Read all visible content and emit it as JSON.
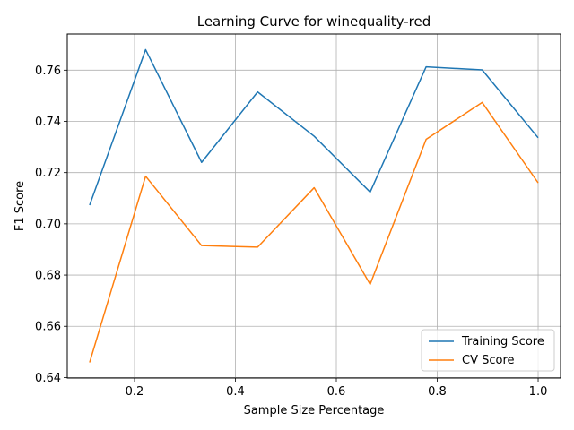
{
  "chart_data": {
    "type": "line",
    "title": "Learning Curve for winequality-red",
    "xlabel": "Sample Size Percentage",
    "ylabel": "F1 Score",
    "x": [
      0.111,
      0.222,
      0.333,
      0.444,
      0.556,
      0.667,
      0.778,
      0.889,
      1.0
    ],
    "series": [
      {
        "name": "Training Score",
        "color": "#1f77b4",
        "values": [
          0.7073,
          0.768,
          0.724,
          0.7515,
          0.7342,
          0.7124,
          0.7613,
          0.7601,
          0.7336
        ]
      },
      {
        "name": "CV Score",
        "color": "#ff7f0e",
        "values": [
          0.6459,
          0.7186,
          0.6915,
          0.6909,
          0.7141,
          0.6764,
          0.733,
          0.7474,
          0.716
        ]
      }
    ],
    "xlim": [
      0.0667,
      1.0444
    ],
    "ylim": [
      0.6398,
      0.7741
    ],
    "xticks": [
      0.2,
      0.4,
      0.6,
      0.8,
      1.0
    ],
    "xtick_labels": [
      "0.2",
      "0.4",
      "0.6",
      "0.8",
      "1.0"
    ],
    "yticks": [
      0.64,
      0.66,
      0.68,
      0.7,
      0.72,
      0.74,
      0.76
    ],
    "ytick_labels": [
      "0.64",
      "0.66",
      "0.68",
      "0.70",
      "0.72",
      "0.74",
      "0.76"
    ],
    "grid": true,
    "legend_position": "lower right"
  }
}
